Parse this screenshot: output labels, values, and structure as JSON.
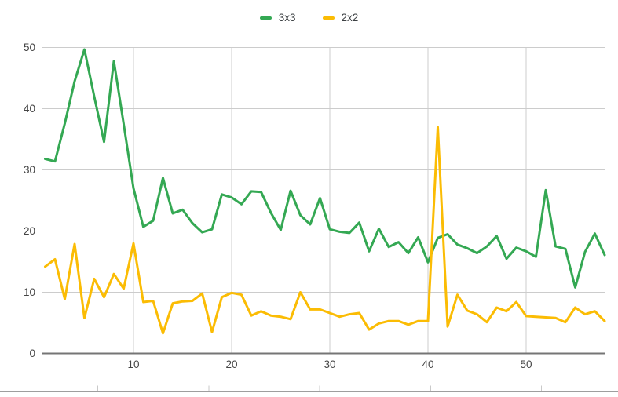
{
  "legend": {
    "items": [
      {
        "label": "3x3",
        "color": "#34a853"
      },
      {
        "label": "2x2",
        "color": "#fbbc04"
      }
    ]
  },
  "chart_data": {
    "type": "line",
    "title": "",
    "xlabel": "",
    "ylabel": "",
    "legend_position": "top-center",
    "grid": true,
    "xlim": [
      1,
      58
    ],
    "ylim": [
      0,
      50
    ],
    "x_ticks": [
      10,
      20,
      30,
      40,
      50
    ],
    "y_ticks": [
      0,
      10,
      20,
      30,
      40,
      50
    ],
    "gridline_color": "#cccccc",
    "baseline_color": "#757575",
    "label_color": "#444444",
    "x": [
      1,
      2,
      3,
      4,
      5,
      6,
      7,
      8,
      9,
      10,
      11,
      12,
      13,
      14,
      15,
      16,
      17,
      18,
      19,
      20,
      21,
      22,
      23,
      24,
      25,
      26,
      27,
      28,
      29,
      30,
      31,
      32,
      33,
      34,
      35,
      36,
      37,
      38,
      39,
      40,
      41,
      42,
      43,
      44,
      45,
      46,
      47,
      48,
      49,
      50,
      51,
      52,
      53,
      54,
      55,
      56,
      57,
      58
    ],
    "series": [
      {
        "name": "3x3",
        "color": "#34a853",
        "values": [
          31.8,
          31.4,
          37.6,
          44.5,
          49.7,
          42.0,
          34.6,
          47.8,
          37.5,
          27.0,
          20.7,
          21.7,
          28.7,
          22.9,
          23.5,
          21.3,
          19.8,
          20.3,
          26.0,
          25.5,
          24.4,
          26.5,
          26.4,
          23.0,
          20.2,
          26.6,
          22.6,
          21.1,
          25.4,
          20.3,
          19.9,
          19.7,
          21.4,
          16.7,
          20.4,
          17.4,
          18.2,
          16.4,
          19.0,
          14.9,
          18.9,
          19.5,
          17.8,
          17.2,
          16.4,
          17.5,
          19.2,
          15.5,
          17.3,
          16.7,
          15.8,
          26.7,
          17.5,
          17.1,
          10.8,
          16.6,
          19.6,
          16.1
        ]
      },
      {
        "name": "2x2",
        "color": "#fbbc04",
        "values": [
          14.2,
          15.4,
          8.9,
          17.9,
          5.8,
          12.2,
          9.2,
          13.0,
          10.6,
          18.0,
          8.4,
          8.6,
          3.3,
          8.2,
          8.5,
          8.6,
          9.8,
          3.5,
          9.2,
          9.9,
          9.6,
          6.2,
          6.9,
          6.2,
          6.0,
          5.6,
          10.0,
          7.2,
          7.2,
          6.6,
          6.0,
          6.4,
          6.6,
          3.9,
          4.9,
          5.3,
          5.3,
          4.7,
          5.3,
          5.3,
          37.0,
          4.4,
          9.6,
          7.0,
          6.4,
          5.1,
          7.5,
          6.9,
          8.4,
          6.1,
          6.0,
          5.9,
          5.8,
          5.1,
          7.5,
          6.4,
          6.9,
          5.3
        ]
      }
    ]
  },
  "bottom_strip": {
    "tick_values": [
      10,
      20,
      30,
      40,
      50
    ]
  }
}
